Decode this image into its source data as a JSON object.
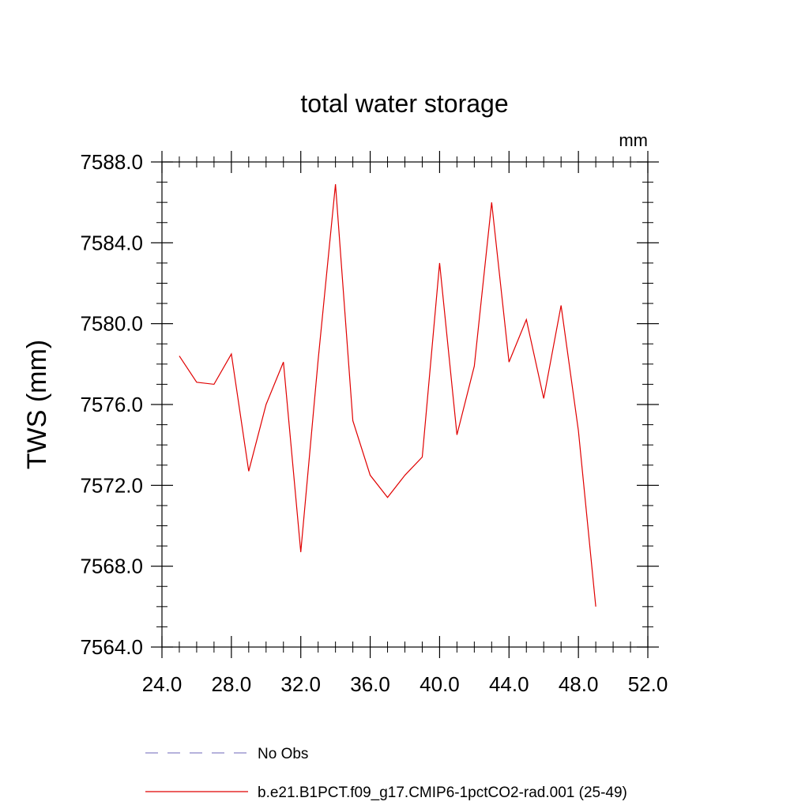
{
  "chart_data": {
    "type": "line",
    "title": "total water storage",
    "units_label": "mm",
    "xlabel": "",
    "ylabel": "TWS  (mm)",
    "xlim": [
      24,
      52
    ],
    "ylim": [
      7564,
      7588
    ],
    "x_ticks": [
      "24.0",
      "28.0",
      "32.0",
      "36.0",
      "40.0",
      "44.0",
      "48.0",
      "52.0"
    ],
    "y_ticks": [
      "7564.0",
      "7568.0",
      "7572.0",
      "7576.0",
      "7580.0",
      "7584.0",
      "7588.0"
    ],
    "grid": false,
    "legend_position": "bottom",
    "series": [
      {
        "name": "No Obs",
        "color": "#8a85c8",
        "dash": "dashed",
        "x": [],
        "y": []
      },
      {
        "name": "b.e21.B1PCT.f09_g17.CMIP6-1pctCO2-rad.001 (25-49)",
        "color": "#e00000",
        "dash": "solid",
        "x": [
          25,
          26,
          27,
          28,
          29,
          30,
          31,
          32,
          33,
          34,
          35,
          36,
          37,
          38,
          39,
          40,
          41,
          42,
          43,
          44,
          45,
          46,
          47,
          48,
          49
        ],
        "y": [
          7578.4,
          7577.1,
          7577.0,
          7578.5,
          7572.7,
          7576.0,
          7578.1,
          7568.7,
          7578.2,
          7586.9,
          7575.2,
          7572.5,
          7571.4,
          7572.5,
          7573.4,
          7583.0,
          7574.5,
          7577.9,
          7586.0,
          7578.1,
          7580.2,
          7576.3,
          7580.9,
          7574.7,
          7566.0
        ]
      }
    ]
  }
}
